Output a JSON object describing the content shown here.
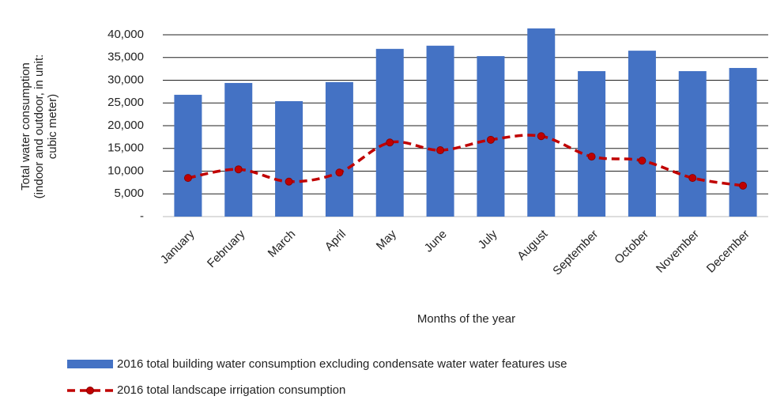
{
  "chart_data": {
    "type": "bar-line",
    "xlabel": "Months of the year",
    "ylabel": [
      "Total water consumption",
      "(indoor and outdoor, in unit:",
      "cubic meter)"
    ],
    "categories": [
      "January",
      "February",
      "March",
      "April",
      "May",
      "June",
      "July",
      "August",
      "September",
      "October",
      "November",
      "December"
    ],
    "series": [
      {
        "name": "2016 total building water consumption excluding condensate water water features use",
        "type": "bar",
        "color": "#4472c4",
        "values": [
          26800,
          29400,
          25400,
          29600,
          36900,
          37600,
          35300,
          41400,
          32000,
          36500,
          32000,
          32700
        ]
      },
      {
        "name": "2016 total landscape irrigation consumption",
        "type": "line",
        "color": "#c00000",
        "values": [
          8500,
          10400,
          7700,
          9700,
          16300,
          14600,
          16900,
          17700,
          13200,
          12300,
          8500,
          6800
        ]
      }
    ],
    "ylim": [
      0,
      40000
    ],
    "yticks": [
      {
        "value": 0,
        "label": "-"
      },
      {
        "value": 5000,
        "label": "5,000"
      },
      {
        "value": 10000,
        "label": "10,000"
      },
      {
        "value": 15000,
        "label": "15,000"
      },
      {
        "value": 20000,
        "label": "20,000"
      },
      {
        "value": 25000,
        "label": "25,000"
      },
      {
        "value": 30000,
        "label": "30,000"
      },
      {
        "value": 35000,
        "label": "35,000"
      },
      {
        "value": 40000,
        "label": "40,000"
      }
    ],
    "grid": true,
    "legend": "bottom"
  }
}
